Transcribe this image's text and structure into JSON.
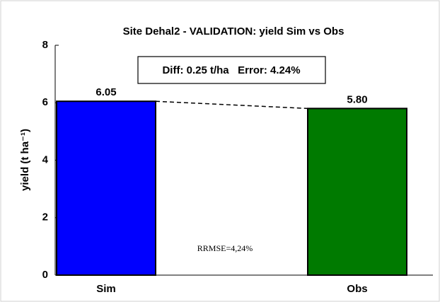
{
  "chart_data": {
    "type": "bar",
    "title": "Site Dehal2 - VALIDATION: yield Sim vs Obs",
    "ylabel": "yield (t ha⁻¹)",
    "categories": [
      "Sim",
      "Obs"
    ],
    "values": [
      6.05,
      5.8
    ],
    "value_labels": [
      "6.05",
      "5.80"
    ],
    "colors": [
      "#0000ff",
      "#007a00"
    ],
    "ylim": [
      0,
      8
    ],
    "yticks": [
      0,
      2,
      4,
      6,
      8
    ],
    "annotations": [
      "Diff: 0.25 t/ha   Error: 4.24%",
      "RRMSE=4,24%"
    ],
    "grid": false
  }
}
